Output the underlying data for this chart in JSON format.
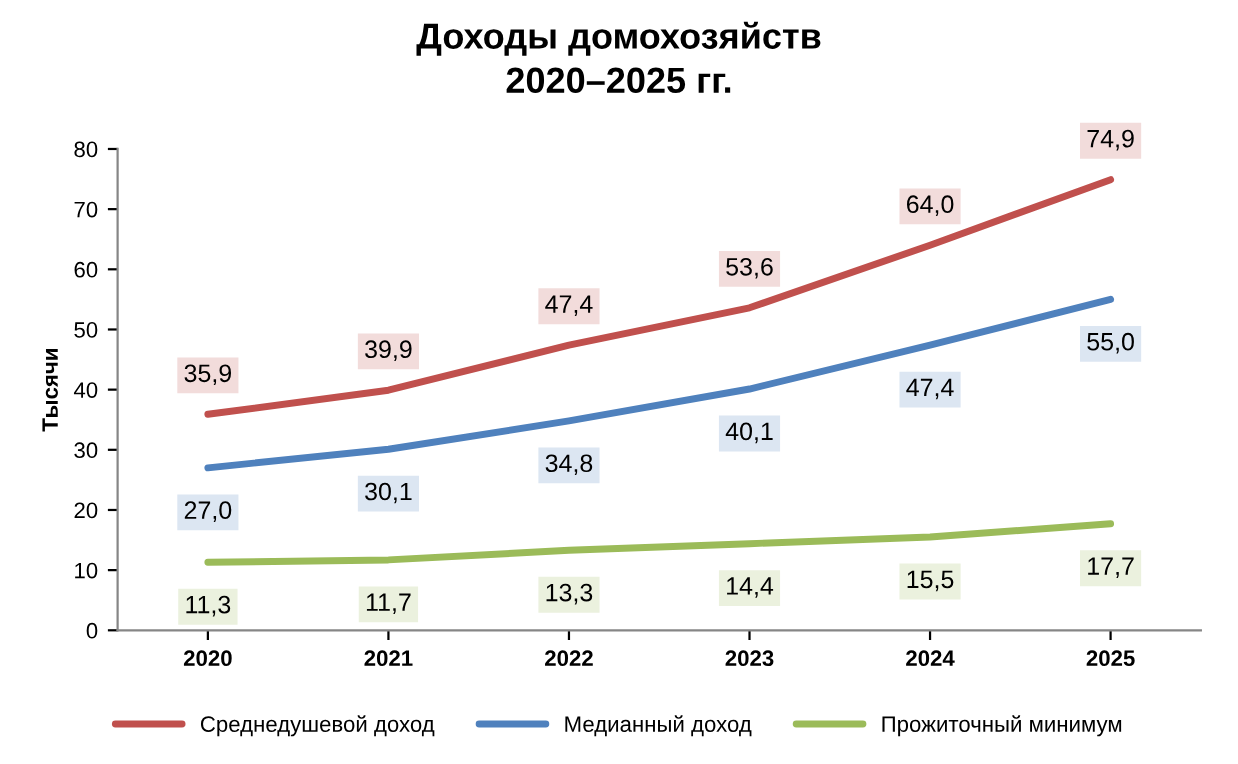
{
  "chart_data": {
    "type": "line",
    "title": "Доходы домохозяйств\n2020–2025 гг.",
    "ylabel": "Тысячи",
    "categories": [
      "2020",
      "2021",
      "2022",
      "2023",
      "2024",
      "2025"
    ],
    "series": [
      {
        "name": "Среднедушевой доход",
        "color": "#c0504d",
        "values": [
          35.9,
          39.9,
          47.4,
          53.6,
          64.0,
          74.9
        ],
        "value_labels": [
          "35,9",
          "39,9",
          "47,4",
          "53,6",
          "64,0",
          "74,9"
        ]
      },
      {
        "name": "Медианный доход",
        "color": "#4f81bd",
        "values": [
          27.0,
          30.1,
          34.8,
          40.1,
          47.4,
          55.0
        ],
        "value_labels": [
          "27,0",
          "30,1",
          "34,8",
          "40,1",
          "47,4",
          "55,0"
        ]
      },
      {
        "name": "Прожиточный минимум",
        "color": "#9bbb59",
        "values": [
          11.3,
          11.7,
          13.3,
          14.4,
          15.5,
          17.7
        ],
        "value_labels": [
          "11,3",
          "11,7",
          "13,3",
          "14,4",
          "15,5",
          "17,7"
        ]
      }
    ],
    "ylim": [
      0,
      80
    ],
    "yticks": [
      0,
      10,
      20,
      30,
      40,
      50,
      60,
      70,
      80
    ],
    "grid": false,
    "legend": "bottom",
    "marker": "none",
    "line_style": "solid"
  }
}
